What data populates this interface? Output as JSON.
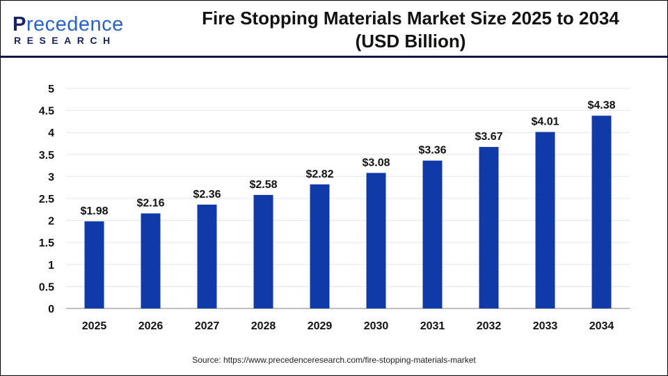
{
  "logo": {
    "main_first": "P",
    "main_rest": "recedence",
    "sub": "RESEARCH"
  },
  "title_line1": "Fire Stopping Materials Market Size 2025 to 2034",
  "title_line2": "(USD Billion)",
  "source": "Source: https://www.precedenceresearch.com/fire-stopping-materials-market",
  "colors": {
    "bar": "#0f3aa8",
    "header_rule": "#0b1646",
    "grid": "#e6e6e6",
    "axis": "#bfbfbf"
  },
  "chart_data": {
    "type": "bar",
    "title": "Fire Stopping Materials Market Size 2025 to 2034 (USD Billion)",
    "categories": [
      "2025",
      "2026",
      "2027",
      "2028",
      "2029",
      "2030",
      "2031",
      "2032",
      "2033",
      "2034"
    ],
    "values": [
      1.98,
      2.16,
      2.36,
      2.58,
      2.82,
      3.08,
      3.36,
      3.67,
      4.01,
      4.38
    ],
    "data_labels": [
      "$1.98",
      "$2.16",
      "$2.36",
      "$2.58",
      "$2.82",
      "$3.08",
      "$3.36",
      "$3.67",
      "$4.01",
      "$4.38"
    ],
    "yticks": [
      "0",
      "0.5",
      "1",
      "1.5",
      "2",
      "2.5",
      "3",
      "3.5",
      "4",
      "4.5",
      "5"
    ],
    "ylim": [
      0,
      5
    ],
    "grid": true,
    "xlabel": "",
    "ylabel": ""
  }
}
